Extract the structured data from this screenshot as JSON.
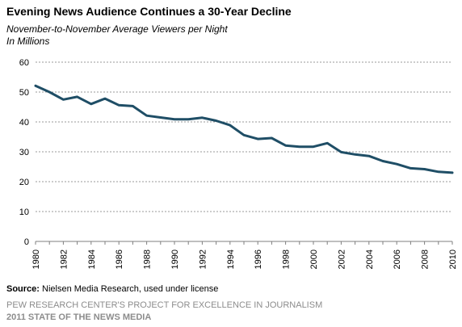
{
  "chart_data": {
    "type": "line",
    "title": "Evening News Audience Continues a 30-Year Decline",
    "subtitle": "November-to-November Average Viewers per Night",
    "ylabel": "In Millions",
    "xlabel": "",
    "x": [
      1980,
      1981,
      1982,
      1983,
      1984,
      1985,
      1986,
      1987,
      1988,
      1989,
      1990,
      1991,
      1992,
      1993,
      1994,
      1995,
      1996,
      1997,
      1998,
      1999,
      2000,
      2001,
      2002,
      2003,
      2004,
      2005,
      2006,
      2007,
      2008,
      2009,
      2010
    ],
    "series": [
      {
        "name": "",
        "color": "#1f4e66",
        "values": [
          52.1,
          50.0,
          47.5,
          48.4,
          46.0,
          47.8,
          45.6,
          45.3,
          42.1,
          41.5,
          40.9,
          40.9,
          41.4,
          40.4,
          38.9,
          35.6,
          34.3,
          34.6,
          32.1,
          31.7,
          31.7,
          32.9,
          29.9,
          29.1,
          28.6,
          26.9,
          25.9,
          24.5,
          24.2,
          23.3,
          23.0
        ]
      }
    ],
    "xticks": [
      "1980",
      "1982",
      "1984",
      "1986",
      "1988",
      "1990",
      "1992",
      "1994",
      "1996",
      "1998",
      "2000",
      "2002",
      "2004",
      "2006",
      "2008",
      "2010"
    ],
    "yticks": [
      "0",
      "10",
      "20",
      "30",
      "40",
      "50",
      "60"
    ],
    "ylim": [
      0,
      60
    ],
    "xlim": [
      1980,
      2010
    ],
    "grid": "horizontal dashed",
    "legend": "none"
  },
  "footer": {
    "source_label": "Source:",
    "source_text": " Nielsen Media Research, used under license",
    "org": "PEW RESEARCH CENTER'S PROJECT FOR EXCELLENCE IN JOURNALISM",
    "report": "2011 STATE OF THE NEWS MEDIA"
  }
}
